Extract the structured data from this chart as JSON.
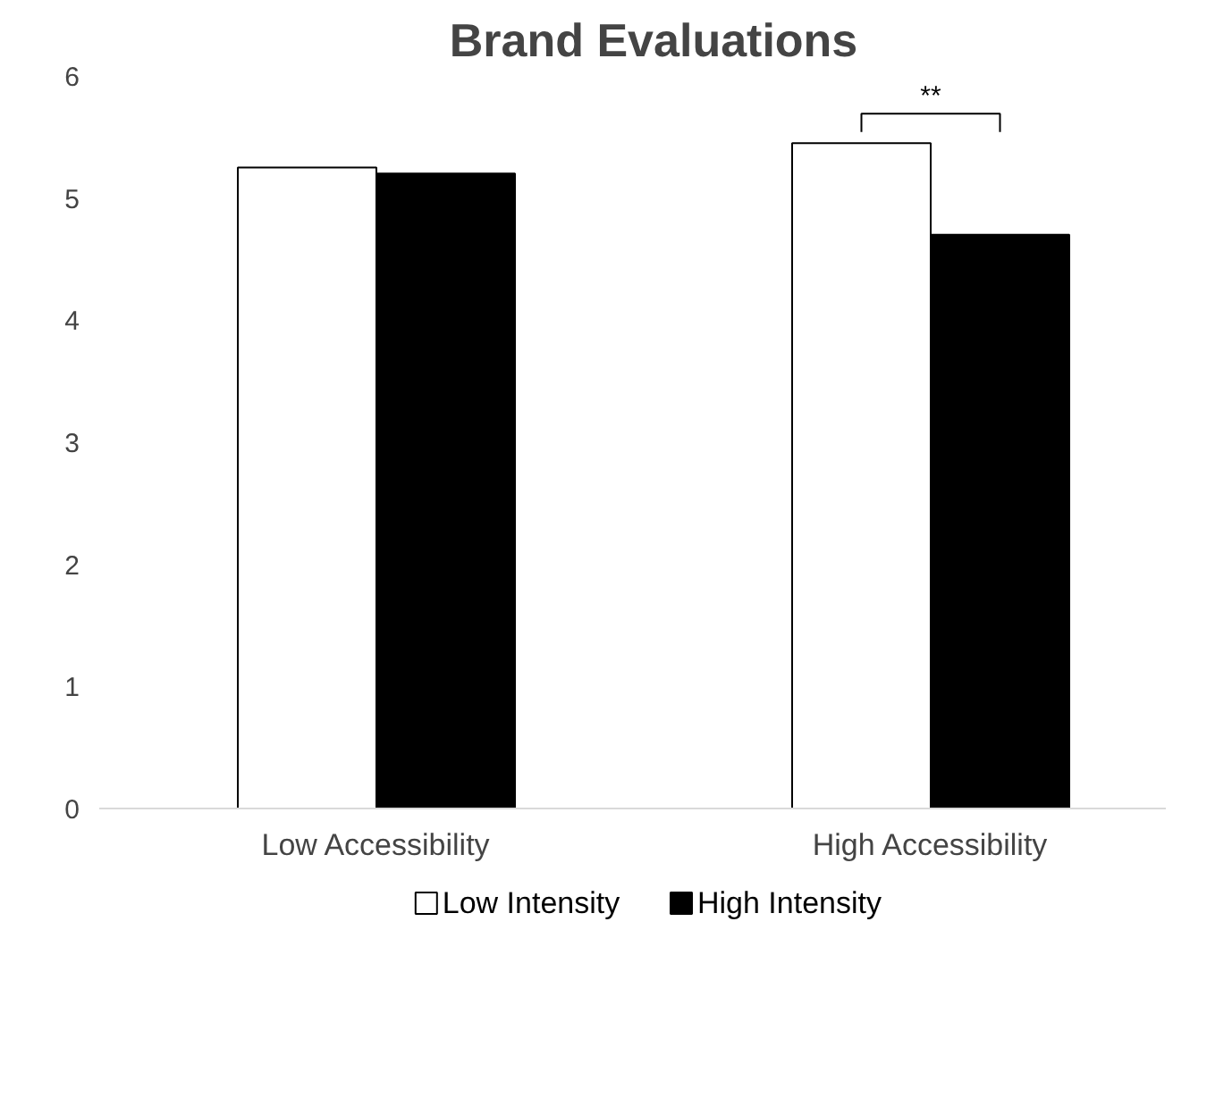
{
  "chart_data": {
    "type": "bar",
    "title": "Brand Evaluations",
    "categories": [
      "Low Accessibility",
      "High Accessibility"
    ],
    "series": [
      {
        "name": "Low Intensity",
        "color": "#ffffff",
        "values": [
          5.25,
          5.45
        ]
      },
      {
        "name": "High Intensity",
        "color": "#000000",
        "values": [
          5.2,
          4.7
        ]
      }
    ],
    "ylim": [
      0,
      6
    ],
    "yticks": [
      0,
      1,
      2,
      3,
      4,
      5,
      6
    ],
    "grid": false,
    "legend": "bottom",
    "annotations": [
      "**"
    ]
  }
}
